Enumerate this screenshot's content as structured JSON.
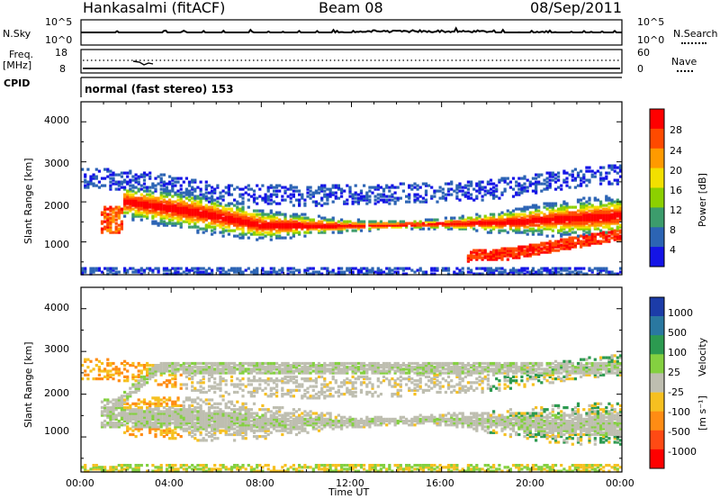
{
  "header": {
    "radar": "Hankasalmi (fitACF)",
    "beam": "Beam 08",
    "date": "08/Sep/2011"
  },
  "noise_panel": {
    "left_label": "N.Sky",
    "left_ticks": [
      "10^5",
      "10^0"
    ],
    "right_ticks": [
      "10^5",
      "10^0"
    ],
    "right_label": "N.Search"
  },
  "freq_panel": {
    "label_top": "Freq.",
    "label_bottom": "[MHz]",
    "left_ticks": [
      "18",
      "8"
    ],
    "right_ticks": [
      "60",
      "0"
    ],
    "right_label": "Nave"
  },
  "cpid": {
    "label": "CPID",
    "mode": "normal (fast stereo) 153"
  },
  "x_axis": {
    "ticks": [
      "00:00",
      "04:00",
      "08:00",
      "12:00",
      "16:00",
      "20:00",
      "00:00"
    ],
    "label": "Time UT"
  },
  "y_axis": {
    "label": "Slant Range [km]",
    "ticks": [
      "4000",
      "3000",
      "2000",
      "1000"
    ]
  },
  "power_scale": {
    "label": "Power [dB]",
    "ticks": [
      "28",
      "24",
      "20",
      "16",
      "12",
      "8",
      "4"
    ],
    "colors": [
      "#ff0000",
      "#ff4a00",
      "#ff9a00",
      "#f2e000",
      "#8cd000",
      "#3c9c6c",
      "#2c64b4",
      "#1414e6"
    ]
  },
  "velocity_scale": {
    "label": "Velocity",
    "unit": "[m s⁻¹]",
    "ticks": [
      "1000",
      "500",
      "100",
      "25",
      "-25",
      "-100",
      "-500",
      "-1000"
    ],
    "colors": [
      "#1c3ca8",
      "#2a78a0",
      "#2c9a50",
      "#84d040",
      "#bebeb0",
      "#f6c020",
      "#ff8c14",
      "#ff4a14",
      "#ff0000"
    ]
  },
  "chart_data": {
    "type": "heatmap",
    "title": "Hankasalmi (fitACF) Beam 08 08/Sep/2011",
    "xlabel": "Time UT",
    "ylabel": "Slant Range [km]",
    "x_range": [
      "00:00",
      "24:00"
    ],
    "ylim": [
      180,
      4500
    ],
    "panels": [
      {
        "name": "Power",
        "unit": "dB",
        "range": [
          0,
          30
        ],
        "features": [
          {
            "desc": "main F-region echo band",
            "x": [
              2.0,
              5.0,
              8.0,
              12.0,
              16.0,
              19.0,
              21.5,
              23.8
            ],
            "y": [
              2000,
              1750,
              1420,
              1400,
              1450,
              1500,
              1580,
              1650
            ],
            "peak_power": 30
          },
          {
            "desc": "lower echo branch",
            "x": [
              17.0,
              19.0,
              21.0,
              23.5
            ],
            "y": [
              650,
              700,
              900,
              1150
            ],
            "peak_power": 28
          },
          {
            "desc": "early morning patch",
            "x": [
              1.0,
              1.5
            ],
            "y": [
              1400,
              1600
            ],
            "peak_power": 28
          },
          {
            "desc": "near range ground scatter band",
            "x": [
              0,
              24
            ],
            "y": [
              300,
              300
            ],
            "peak_power": 8
          }
        ]
      },
      {
        "name": "Velocity",
        "unit": "m s^-1",
        "range": [
          -1000,
          1000
        ],
        "features": [
          {
            "desc": "ground scatter band (near zero velocity)",
            "x": [
              4.0,
              8.0,
              12.0,
              16.0,
              20.0
            ],
            "y": [
              1450,
              1350,
              1350,
              1400,
              1300
            ],
            "velocity": 0
          },
          {
            "desc": "morning negative velocity patches",
            "x": [
              1.0,
              3.3
            ],
            "y": [
              1500,
              2600
            ],
            "velocity": -200
          }
        ]
      }
    ]
  }
}
